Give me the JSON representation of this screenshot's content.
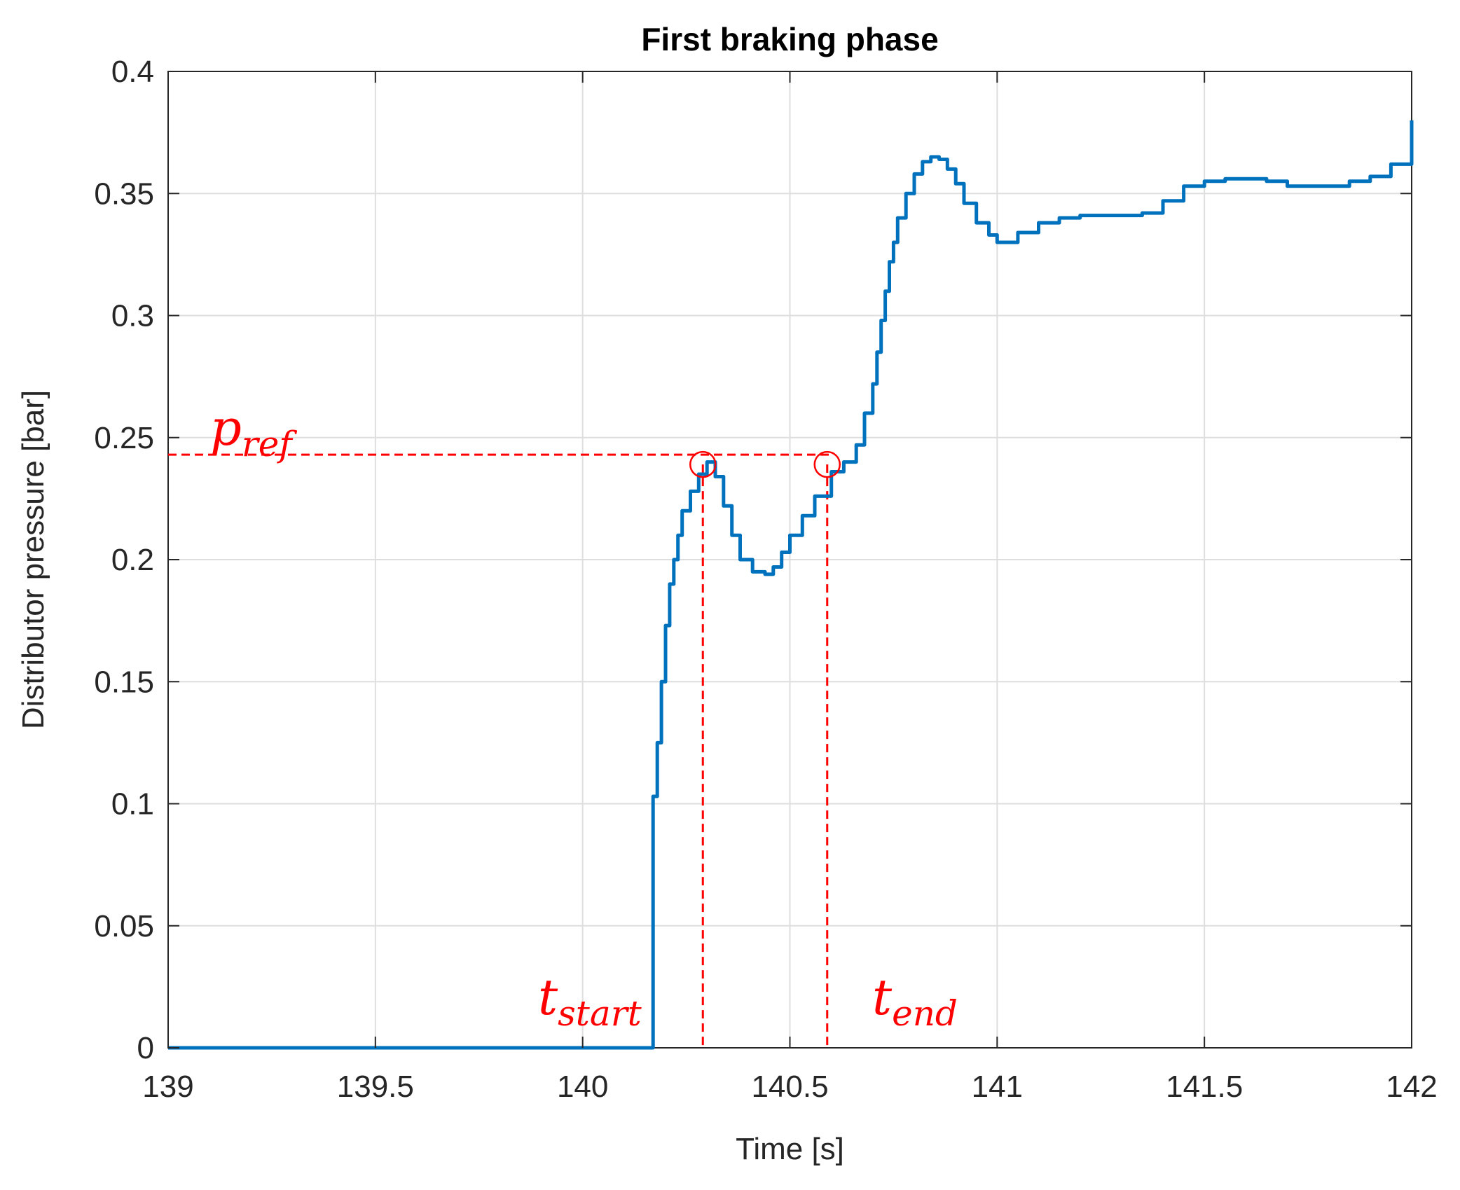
{
  "chart_data": {
    "type": "line",
    "title": "First braking phase",
    "xlabel": "Time [s]",
    "ylabel": "Distributor pressure [bar]",
    "xlim": [
      139,
      142
    ],
    "ylim": [
      0,
      0.4
    ],
    "x_ticks": [
      139,
      139.5,
      140,
      140.5,
      141,
      141.5,
      142
    ],
    "x_tick_labels": [
      "139",
      "139.5",
      "140",
      "140.5",
      "141",
      "141.5",
      "142"
    ],
    "y_ticks": [
      0,
      0.05,
      0.1,
      0.15,
      0.2,
      0.25,
      0.3,
      0.35,
      0.4
    ],
    "y_tick_labels": [
      "0",
      "0.05",
      "0.1",
      "0.15",
      "0.2",
      "0.25",
      "0.3",
      "0.35",
      "0.4"
    ],
    "grid": true,
    "series_color": "#0072BD",
    "annotation_color": "#FF0000",
    "series": [
      {
        "points": [
          [
            139.0,
            0.0
          ],
          [
            140.17,
            0.0
          ],
          [
            140.17,
            0.103
          ],
          [
            140.18,
            0.125
          ],
          [
            140.19,
            0.15
          ],
          [
            140.2,
            0.173
          ],
          [
            140.21,
            0.19
          ],
          [
            140.22,
            0.2
          ],
          [
            140.23,
            0.21
          ],
          [
            140.24,
            0.22
          ],
          [
            140.26,
            0.228
          ],
          [
            140.28,
            0.235
          ],
          [
            140.3,
            0.24
          ],
          [
            140.32,
            0.234
          ],
          [
            140.34,
            0.222
          ],
          [
            140.36,
            0.21
          ],
          [
            140.38,
            0.2
          ],
          [
            140.41,
            0.195
          ],
          [
            140.44,
            0.194
          ],
          [
            140.46,
            0.197
          ],
          [
            140.48,
            0.203
          ],
          [
            140.5,
            0.21
          ],
          [
            140.53,
            0.218
          ],
          [
            140.56,
            0.226
          ],
          [
            140.6,
            0.236
          ],
          [
            140.63,
            0.24
          ],
          [
            140.66,
            0.247
          ],
          [
            140.68,
            0.26
          ],
          [
            140.7,
            0.272
          ],
          [
            140.71,
            0.285
          ],
          [
            140.72,
            0.298
          ],
          [
            140.73,
            0.31
          ],
          [
            140.74,
            0.322
          ],
          [
            140.75,
            0.33
          ],
          [
            140.76,
            0.34
          ],
          [
            140.78,
            0.35
          ],
          [
            140.8,
            0.358
          ],
          [
            140.82,
            0.363
          ],
          [
            140.84,
            0.365
          ],
          [
            140.86,
            0.364
          ],
          [
            140.88,
            0.36
          ],
          [
            140.9,
            0.354
          ],
          [
            140.92,
            0.346
          ],
          [
            140.95,
            0.338
          ],
          [
            140.98,
            0.333
          ],
          [
            141.0,
            0.33
          ],
          [
            141.02,
            0.33
          ],
          [
            141.05,
            0.334
          ],
          [
            141.1,
            0.338
          ],
          [
            141.15,
            0.34
          ],
          [
            141.2,
            0.341
          ],
          [
            141.3,
            0.341
          ],
          [
            141.35,
            0.342
          ],
          [
            141.4,
            0.347
          ],
          [
            141.45,
            0.353
          ],
          [
            141.5,
            0.355
          ],
          [
            141.55,
            0.356
          ],
          [
            141.6,
            0.356
          ],
          [
            141.65,
            0.355
          ],
          [
            141.7,
            0.353
          ],
          [
            141.75,
            0.353
          ],
          [
            141.8,
            0.353
          ],
          [
            141.85,
            0.355
          ],
          [
            141.9,
            0.357
          ],
          [
            141.95,
            0.362
          ],
          [
            142.0,
            0.38
          ]
        ]
      }
    ],
    "annotations": {
      "p_ref": {
        "label": "p",
        "subscript": "ref",
        "value": 0.243
      },
      "t_start": {
        "label": "t",
        "subscript": "start",
        "time": 140.29,
        "marker_value": 0.239
      },
      "t_end": {
        "label": "t",
        "subscript": "end",
        "time": 140.59,
        "marker_value": 0.239
      }
    }
  }
}
